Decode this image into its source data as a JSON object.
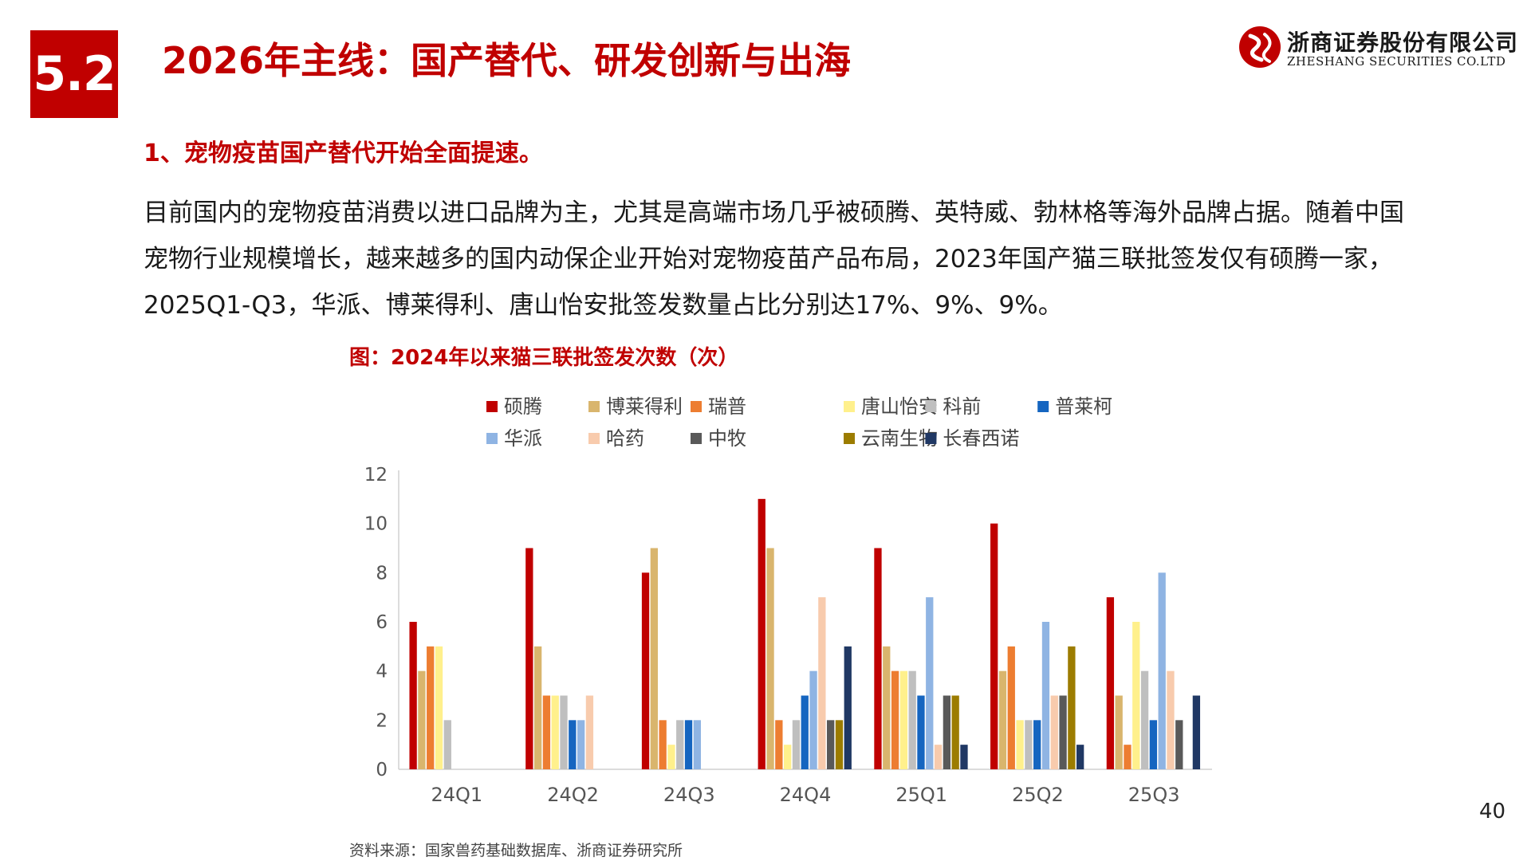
{
  "header": {
    "section_number": "5.2",
    "title": "2026年主线：国产替代、研发创新与出海",
    "logo_cn": "浙商证券股份有限公司",
    "logo_en": "ZHESHANG SECURITIES CO.LTD",
    "brand_color": "#c00000"
  },
  "content": {
    "heading": "1、宠物疫苗国产替代开始全面提速。",
    "paragraph": "目前国内的宠物疫苗消费以进口品牌为主，尤其是高端市场几乎被硕腾、英特威、勃林格等海外品牌占据。随着中国宠物行业规模增长，越来越多的国内动保企业开始对宠物疫苗产品布局，2023年国产猫三联批签发仅有硕腾一家，2025Q1-Q3，华派、博莱得利、唐山怡安批签发数量占比分别达17%、9%、9%。"
  },
  "chart_caption": "图：2024年以来猫三联批签发次数（次）",
  "chart_data": {
    "type": "bar",
    "categories": [
      "24Q1",
      "24Q2",
      "24Q3",
      "24Q4",
      "25Q1",
      "25Q2",
      "25Q3"
    ],
    "ylim": [
      0,
      12
    ],
    "yticks": [
      0,
      2,
      4,
      6,
      8,
      10,
      12
    ],
    "grid": false,
    "legend_position": "top",
    "series": [
      {
        "name": "硕腾",
        "color": "#c00000",
        "values": [
          6,
          9,
          8,
          11,
          9,
          10,
          7
        ]
      },
      {
        "name": "博莱得利",
        "color": "#d9b56d",
        "values": [
          4,
          5,
          9,
          9,
          5,
          4,
          3
        ]
      },
      {
        "name": "瑞普",
        "color": "#ed7d31",
        "values": [
          5,
          3,
          2,
          2,
          4,
          5,
          1
        ]
      },
      {
        "name": "唐山怡安",
        "color": "#fff08c",
        "values": [
          5,
          3,
          1,
          1,
          4,
          2,
          6
        ]
      },
      {
        "name": "科前",
        "color": "#bfbfbf",
        "values": [
          2,
          3,
          2,
          2,
          4,
          2,
          4
        ]
      },
      {
        "name": "普莱柯",
        "color": "#1565c0",
        "values": [
          0,
          2,
          2,
          3,
          3,
          2,
          2
        ]
      },
      {
        "name": "华派",
        "color": "#8fb4e3",
        "values": [
          0,
          2,
          2,
          4,
          7,
          6,
          8
        ]
      },
      {
        "name": "哈药",
        "color": "#f8cbad",
        "values": [
          0,
          3,
          0,
          7,
          1,
          3,
          4
        ]
      },
      {
        "name": "中牧",
        "color": "#595959",
        "values": [
          0,
          0,
          0,
          2,
          3,
          3,
          2
        ]
      },
      {
        "name": "云南生物",
        "color": "#9c7c00",
        "values": [
          0,
          0,
          0,
          2,
          3,
          5,
          0
        ]
      },
      {
        "name": "长春西诺",
        "color": "#203864",
        "values": [
          0,
          0,
          0,
          5,
          1,
          1,
          3
        ]
      }
    ]
  },
  "source": "资料来源：国家兽药基础数据库、浙商证券研究所",
  "page_number": "40"
}
